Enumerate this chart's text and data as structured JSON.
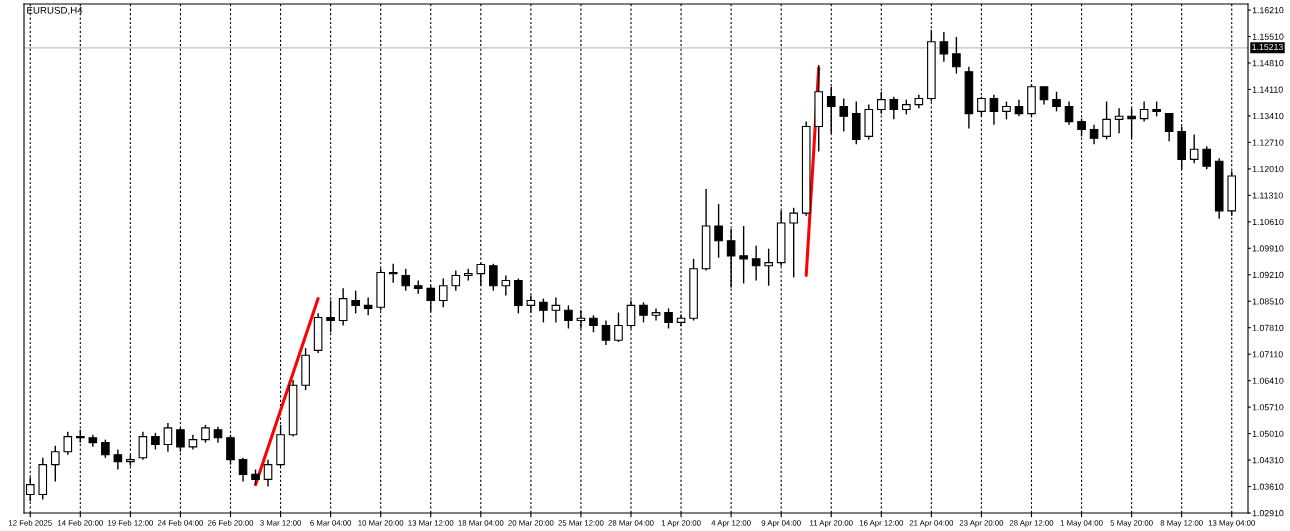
{
  "chart_data": {
    "type": "candlestick",
    "title": "EURUSD,H4",
    "categories": [
      "12 Feb 2025",
      null,
      null,
      null,
      "14 Feb 20:00",
      null,
      null,
      null,
      "19 Feb 12:00",
      null,
      null,
      null,
      "24 Feb 04:00",
      null,
      null,
      null,
      "26 Feb 20:00",
      null,
      null,
      null,
      "3 Mar 12:00",
      null,
      null,
      null,
      "6 Mar 04:00",
      null,
      null,
      null,
      "10 Mar 20:00",
      null,
      null,
      null,
      "13 Mar 12:00",
      null,
      null,
      null,
      "18 Mar 04:00",
      null,
      null,
      null,
      "20 Mar 20:00",
      null,
      null,
      null,
      "25 Mar 12:00",
      null,
      null,
      null,
      "28 Mar 04:00",
      null,
      null,
      null,
      "1 Apr 20:00",
      null,
      null,
      null,
      "4 Apr 12:00",
      null,
      null,
      null,
      "9 Apr 04:00",
      null,
      null,
      null,
      "11 Apr 20:00",
      null,
      null,
      null,
      "16 Apr 12:00",
      null,
      null,
      null,
      "21 Apr 04:00",
      null,
      null,
      null,
      "23 Apr 20:00",
      null,
      null,
      null,
      "28 Apr 12:00",
      null,
      null,
      null,
      "1 May 04:00",
      null,
      null,
      null,
      "5 May 20:00",
      null,
      null,
      null,
      "8 May 12:00",
      null,
      null,
      null,
      "13 May 04:00"
    ],
    "ohlc": [
      [
        1.034,
        1.0385,
        1.0322,
        1.0366
      ],
      [
        1.034,
        1.0437,
        1.0327,
        1.0419
      ],
      [
        1.0419,
        1.0469,
        1.0374,
        1.0453
      ],
      [
        1.0453,
        1.0506,
        1.0445,
        1.0493
      ],
      [
        1.0493,
        1.0511,
        1.0477,
        1.049
      ],
      [
        1.049,
        1.0498,
        1.0466,
        1.0477
      ],
      [
        1.0477,
        1.0485,
        1.0437,
        1.0445
      ],
      [
        1.0445,
        1.0459,
        1.0406,
        1.0427
      ],
      [
        1.0427,
        1.0445,
        1.0416,
        1.0432
      ],
      [
        1.0437,
        1.0506,
        1.0432,
        1.0493
      ],
      [
        1.0493,
        1.0503,
        1.0459,
        1.0472
      ],
      [
        1.0472,
        1.0529,
        1.0453,
        1.0516
      ],
      [
        1.0511,
        1.0516,
        1.0453,
        1.0466
      ],
      [
        1.0466,
        1.0498,
        1.0459,
        1.0485
      ],
      [
        1.0485,
        1.0524,
        1.0477,
        1.0516
      ],
      [
        1.0511,
        1.0519,
        1.0477,
        1.049
      ],
      [
        1.049,
        1.0498,
        1.0419,
        1.0432
      ],
      [
        1.0432,
        1.0437,
        1.0374,
        1.0393
      ],
      [
        1.0393,
        1.0406,
        1.0366,
        1.038
      ],
      [
        1.038,
        1.0432,
        1.0361,
        1.0419
      ],
      [
        1.0419,
        1.0524,
        1.0414,
        1.0498
      ],
      [
        1.0498,
        1.0643,
        1.0493,
        1.0629
      ],
      [
        1.0629,
        1.0727,
        1.0616,
        1.0708
      ],
      [
        1.0721,
        1.0819,
        1.0714,
        1.0808
      ],
      [
        1.0808,
        1.0853,
        1.0769,
        1.08
      ],
      [
        1.08,
        1.0885,
        1.0787,
        1.0858
      ],
      [
        1.0853,
        1.0879,
        1.0819,
        1.084
      ],
      [
        1.084,
        1.0861,
        1.0814,
        1.0832
      ],
      [
        1.0835,
        1.0937,
        1.0827,
        1.0927
      ],
      [
        1.0927,
        1.095,
        1.09,
        1.0924
      ],
      [
        1.0919,
        1.0937,
        1.0879,
        1.0892
      ],
      [
        1.0892,
        1.0906,
        1.0871,
        1.0885
      ],
      [
        1.0885,
        1.0892,
        1.0824,
        1.0853
      ],
      [
        1.0853,
        1.0911,
        1.0835,
        1.0892
      ],
      [
        1.0892,
        1.0932,
        1.0879,
        1.0919
      ],
      [
        1.0919,
        1.0937,
        1.0906,
        1.0924
      ],
      [
        1.0924,
        1.0953,
        1.0892,
        1.0948
      ],
      [
        1.0945,
        1.095,
        1.0879,
        1.0892
      ],
      [
        1.0892,
        1.0919,
        1.0866,
        1.0906
      ],
      [
        1.0906,
        1.0911,
        1.0819,
        1.084
      ],
      [
        1.084,
        1.0866,
        1.0821,
        1.0853
      ],
      [
        1.0848,
        1.0858,
        1.0795,
        1.0827
      ],
      [
        1.0827,
        1.0861,
        1.0795,
        1.084
      ],
      [
        1.0827,
        1.084,
        1.0779,
        1.08
      ],
      [
        1.08,
        1.0827,
        1.0779,
        1.0806
      ],
      [
        1.0806,
        1.0814,
        1.0769,
        1.0787
      ],
      [
        1.0787,
        1.08,
        1.0735,
        1.0748
      ],
      [
        1.0748,
        1.0821,
        1.0743,
        1.0787
      ],
      [
        1.0787,
        1.0853,
        1.0779,
        1.084
      ],
      [
        1.084,
        1.0848,
        1.0795,
        1.0814
      ],
      [
        1.0814,
        1.0832,
        1.08,
        1.0821
      ],
      [
        1.0821,
        1.0832,
        1.0779,
        1.0795
      ],
      [
        1.0795,
        1.0816,
        1.0785,
        1.0806
      ],
      [
        1.0806,
        1.0963,
        1.08,
        1.0937
      ],
      [
        1.0937,
        1.1148,
        1.0932,
        1.105
      ],
      [
        1.105,
        1.1108,
        1.0966,
        1.1011
      ],
      [
        1.1011,
        1.1042,
        1.0887,
        1.0971
      ],
      [
        1.0971,
        1.105,
        1.0898,
        1.0963
      ],
      [
        1.0963,
        1.0998,
        1.0906,
        1.0945
      ],
      [
        1.0945,
        1.099,
        1.0892,
        1.0953
      ],
      [
        1.0953,
        1.109,
        1.0945,
        1.1058
      ],
      [
        1.1058,
        1.1098,
        1.0914,
        1.1084
      ],
      [
        1.1084,
        1.1326,
        1.1077,
        1.1313
      ],
      [
        1.1313,
        1.1476,
        1.1247,
        1.1405
      ],
      [
        1.1392,
        1.1418,
        1.1295,
        1.1366
      ],
      [
        1.1366,
        1.1387,
        1.13,
        1.134
      ],
      [
        1.1347,
        1.1379,
        1.1266,
        1.1279
      ],
      [
        1.1287,
        1.1371,
        1.1279,
        1.1358
      ],
      [
        1.1358,
        1.1405,
        1.1347,
        1.1384
      ],
      [
        1.1384,
        1.1392,
        1.1332,
        1.1358
      ],
      [
        1.1358,
        1.1384,
        1.1345,
        1.1371
      ],
      [
        1.1371,
        1.1397,
        1.1361,
        1.1387
      ],
      [
        1.1387,
        1.1568,
        1.1379,
        1.1537
      ],
      [
        1.1537,
        1.1563,
        1.1484,
        1.1505
      ],
      [
        1.1505,
        1.155,
        1.1453,
        1.1471
      ],
      [
        1.1458,
        1.1471,
        1.1308,
        1.1347
      ],
      [
        1.1353,
        1.1392,
        1.134,
        1.1387
      ],
      [
        1.1387,
        1.1397,
        1.1318,
        1.1353
      ],
      [
        1.1353,
        1.1379,
        1.1332,
        1.1366
      ],
      [
        1.1366,
        1.1384,
        1.134,
        1.1347
      ],
      [
        1.1347,
        1.1424,
        1.134,
        1.1418
      ],
      [
        1.1418,
        1.1418,
        1.1371,
        1.1384
      ],
      [
        1.1384,
        1.1405,
        1.1353,
        1.1366
      ],
      [
        1.1366,
        1.1379,
        1.1318,
        1.1326
      ],
      [
        1.1326,
        1.1334,
        1.1287,
        1.1305
      ],
      [
        1.1305,
        1.1318,
        1.1266,
        1.1282
      ],
      [
        1.1287,
        1.1379,
        1.1279,
        1.1332
      ],
      [
        1.1332,
        1.1361,
        1.1295,
        1.134
      ],
      [
        1.134,
        1.1361,
        1.1282,
        1.1334
      ],
      [
        1.1334,
        1.1379,
        1.1326,
        1.1358
      ],
      [
        1.1358,
        1.1379,
        1.134,
        1.1353
      ],
      [
        1.1347,
        1.1347,
        1.1274,
        1.13
      ],
      [
        1.13,
        1.1313,
        1.12,
        1.1226
      ],
      [
        1.1226,
        1.1292,
        1.1216,
        1.1253
      ],
      [
        1.1253,
        1.1261,
        1.12,
        1.1208
      ],
      [
        1.1221,
        1.1229,
        1.1069,
        1.109
      ],
      [
        1.109,
        1.1195,
        1.1077,
        1.1182
      ]
    ],
    "color": "#000000",
    "series": [
      {
        "type": "line",
        "color": "#ff0000",
        "values": [
          null,
          null,
          null,
          null,
          null,
          null,
          null,
          null,
          null,
          null,
          null,
          null,
          null,
          null,
          null,
          null,
          null,
          null,
          1.0366,
          null,
          null,
          null,
          null,
          1.0858,
          null,
          null,
          null,
          null,
          null,
          null,
          null,
          null,
          null,
          null,
          null,
          null,
          null,
          null,
          null,
          null,
          null,
          null,
          null,
          null,
          null,
          null,
          null,
          null,
          null,
          null,
          null,
          null,
          null,
          null,
          null,
          null,
          null,
          null,
          null,
          null,
          null,
          null,
          null,
          null,
          null,
          null,
          null,
          null,
          null,
          null,
          null,
          null,
          null,
          null,
          null,
          null,
          null,
          null,
          null,
          null,
          null,
          null,
          null,
          null,
          null,
          null,
          null,
          null,
          null,
          null,
          null,
          null,
          null,
          null,
          null,
          null,
          null
        ]
      },
      {
        "type": "line",
        "color": "#ff0000",
        "values": [
          null,
          null,
          null,
          null,
          null,
          null,
          null,
          null,
          null,
          null,
          null,
          null,
          null,
          null,
          null,
          null,
          null,
          null,
          null,
          null,
          null,
          null,
          null,
          null,
          null,
          null,
          null,
          null,
          null,
          null,
          null,
          null,
          null,
          null,
          null,
          null,
          null,
          null,
          null,
          null,
          null,
          null,
          null,
          null,
          null,
          null,
          null,
          null,
          null,
          null,
          null,
          null,
          null,
          null,
          null,
          null,
          null,
          null,
          null,
          null,
          null,
          null,
          1.0919,
          1.1468,
          null,
          null,
          null,
          null,
          null,
          null,
          null,
          null,
          null,
          null,
          null,
          null,
          null,
          null,
          null,
          null,
          null,
          null,
          null,
          null,
          null,
          null,
          null,
          null,
          null,
          null,
          null,
          null,
          null,
          null,
          null,
          null,
          null
        ]
      }
    ],
    "ylim": [
      1.0291,
      1.1637
    ],
    "yticks": [
      {
        "value": 1.0291,
        "label": "1.02910"
      },
      {
        "value": 1.0361,
        "label": "1.03610"
      },
      {
        "value": 1.0431,
        "label": "1.04310"
      },
      {
        "value": 1.0501,
        "label": "1.05010"
      },
      {
        "value": 1.0571,
        "label": "1.05710"
      },
      {
        "value": 1.0641,
        "label": "1.06410"
      },
      {
        "value": 1.0711,
        "label": "1.07110"
      },
      {
        "value": 1.0781,
        "label": "1.07810"
      },
      {
        "value": 1.0851,
        "label": "1.08510"
      },
      {
        "value": 1.0921,
        "label": "1.09210"
      },
      {
        "value": 1.0991,
        "label": "1.09910"
      },
      {
        "value": 1.1061,
        "label": "1.10610"
      },
      {
        "value": 1.1131,
        "label": "1.11310"
      },
      {
        "value": 1.1201,
        "label": "1.12010"
      },
      {
        "value": 1.1271,
        "label": "1.12710"
      },
      {
        "value": 1.1341,
        "label": "1.13410"
      },
      {
        "value": 1.1411,
        "label": "1.14110"
      },
      {
        "value": 1.1481,
        "label": "1.14810"
      },
      {
        "value": 1.1551,
        "label": "1.15510"
      },
      {
        "value": 1.1621,
        "label": "1.16210"
      }
    ],
    "ref_lines": [
      {
        "axis": "y",
        "value": 1.15213,
        "label": "1.15213",
        "color": "#c0c0c0"
      }
    ],
    "grid": "x"
  }
}
